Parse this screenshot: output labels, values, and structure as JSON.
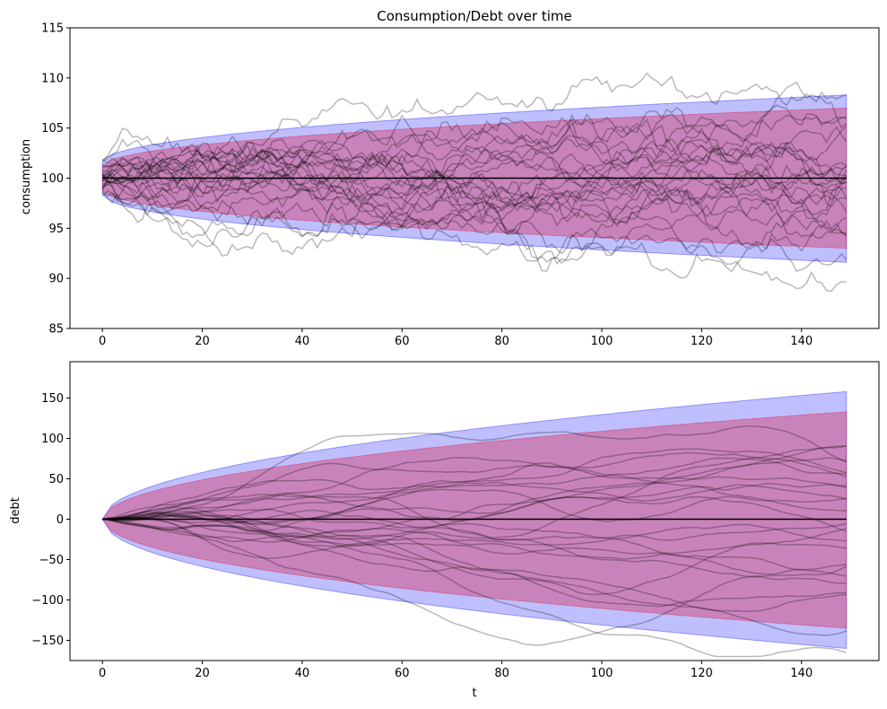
{
  "colors": {
    "outer_band": "#0000ff",
    "inner_band": "#dc143c",
    "paths": "#000000",
    "mean_line": "#000000"
  },
  "chart_data": [
    {
      "type": "line",
      "title": "Consumption/Debt over time",
      "xlabel": "",
      "ylabel": "consumption",
      "xlim": [
        -6.5,
        155.5
      ],
      "ylim": [
        85,
        115
      ],
      "xticks": [
        0,
        20,
        40,
        60,
        80,
        100,
        120,
        140
      ],
      "yticks": [
        85,
        90,
        95,
        100,
        105,
        110,
        115
      ],
      "t_range": [
        0,
        149
      ],
      "grid": false,
      "mean": 100,
      "bands": [
        {
          "name": "",
          "upper_end": 108.3,
          "lower_end": 91.6,
          "start_half_width": 1.6,
          "shape": "sqrt"
        },
        {
          "name": "",
          "upper_end": 107.0,
          "lower_end": 93.0,
          "start_half_width": 1.2,
          "shape": "sqrt"
        }
      ],
      "paths": {
        "count": 25,
        "noise": 0.55,
        "reversion": 0.992,
        "start_spread": 1.2,
        "seed": 7
      }
    },
    {
      "type": "line",
      "title": "",
      "xlabel": "t",
      "ylabel": "debt",
      "xlim": [
        -6.5,
        155.5
      ],
      "ylim": [
        -175,
        195
      ],
      "xticks": [
        0,
        20,
        40,
        60,
        80,
        100,
        120,
        140
      ],
      "yticks": [
        -150,
        -100,
        -50,
        0,
        50,
        100,
        150
      ],
      "t_range": [
        0,
        149
      ],
      "grid": false,
      "mean": 0,
      "bands": [
        {
          "name": "",
          "upper_end": 158,
          "lower_end": -160,
          "start_half_width": 0,
          "shape": "sqrt"
        },
        {
          "name": "",
          "upper_end": 133,
          "lower_end": -135,
          "start_half_width": 0,
          "shape": "sqrt"
        }
      ],
      "paths": {
        "count": 25,
        "noise": 2.2,
        "smooth": 0.93,
        "seed": 19
      }
    }
  ]
}
